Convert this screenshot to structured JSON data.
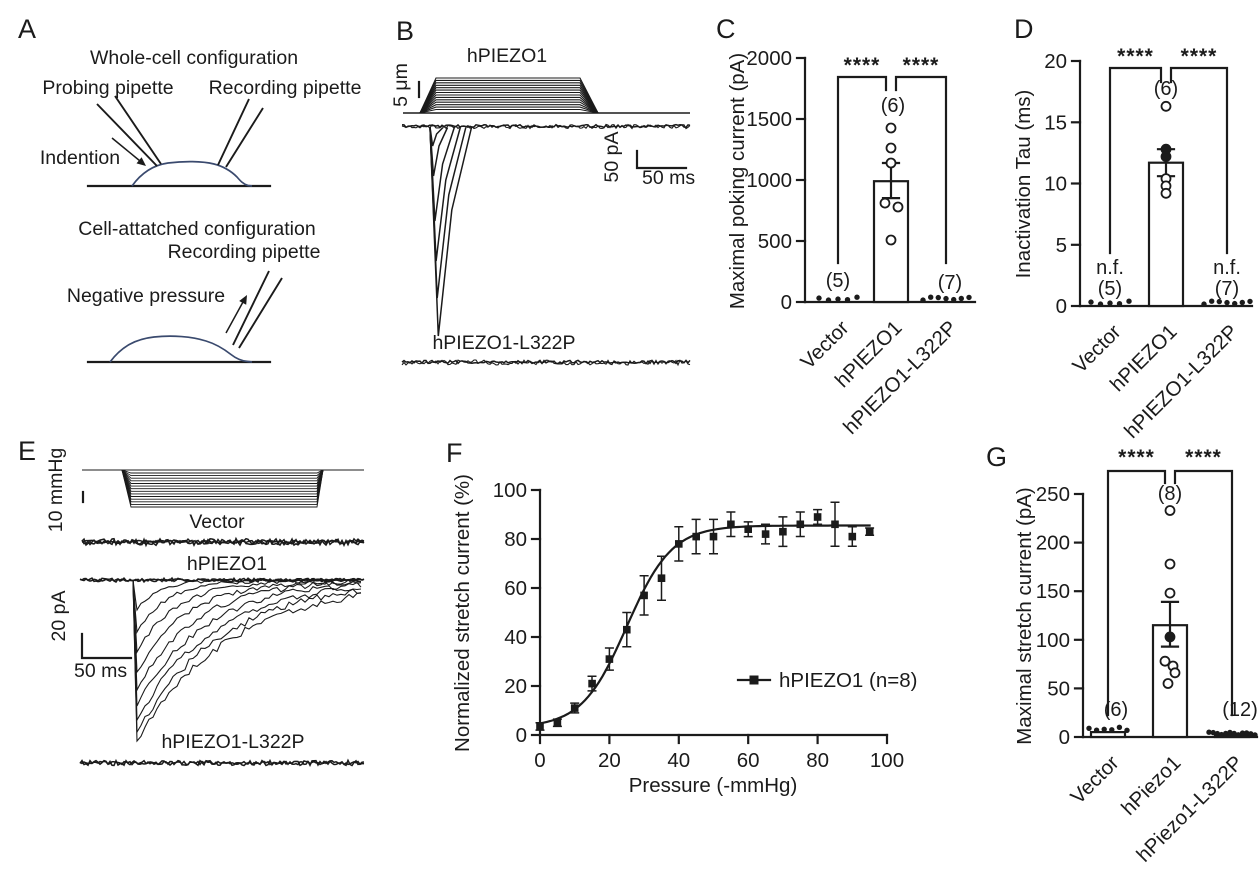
{
  "figure": {
    "background": "#ffffff",
    "ink": "#1b1b1b",
    "membrane_color": "#3a4a6e"
  },
  "panels": {
    "A": {
      "letter": "A",
      "whole_cell_title": "Whole-cell configuration",
      "probing_pipette": "Probing pipette",
      "recording_pipette": "Recording pipette",
      "indention": "Indention",
      "cell_attached_title": "Cell-attatched configuration",
      "recording_pipette2": "Recording pipette",
      "negative_pressure": "Negative pressure"
    },
    "B": {
      "letter": "B",
      "depth_scale": "5 μm",
      "trace1_label": "hPIEZO1",
      "current_scale": "50 pA",
      "time_scale": "50 ms",
      "trace2_label": "hPIEZO1-L322P"
    },
    "C": {
      "letter": "C"
    },
    "D": {
      "letter": "D"
    },
    "E": {
      "letter": "E",
      "pressure_scale": "10 mmHg",
      "trace1_label": "Vector",
      "trace2_label": "hPIEZO1",
      "current_scale": "20 pA",
      "time_scale": "50 ms",
      "trace3_label": "hPIEZO1-L322P"
    },
    "F": {
      "letter": "F"
    },
    "G": {
      "letter": "G"
    }
  },
  "chart_data": [
    {
      "id": "C",
      "type": "bar",
      "ylabel": "Maximal poking current (pA)",
      "ylim": [
        0,
        2000
      ],
      "yticks": [
        0,
        500,
        1000,
        1500,
        2000
      ],
      "categories": [
        "Vector",
        "hPIEZO1",
        "hPIEZO1-L322P"
      ],
      "values": [
        0,
        990,
        0
      ],
      "errors": [
        null,
        [
          852,
          1139
        ],
        null
      ],
      "n_labels": [
        "(5)",
        "(6)",
        "(7)"
      ],
      "nf_labels": [
        null,
        null,
        null
      ],
      "scatter": [
        {
          "category": 1,
          "points": [
            [
              0,
              1426
            ],
            [
              0,
              1262
            ],
            [
              0,
              1139
            ],
            [
              -6,
              811
            ],
            [
              7,
              779
            ],
            [
              0,
              508
            ]
          ],
          "filled": [
            false,
            false,
            false,
            false,
            false,
            false
          ]
        }
      ],
      "baseline_dots": [
        5,
        0,
        7
      ],
      "significance": [
        {
          "between": [
            0,
            1
          ],
          "label": "****"
        },
        {
          "between": [
            1,
            2
          ],
          "label": "****"
        }
      ]
    },
    {
      "id": "D",
      "type": "bar",
      "ylabel": "Inactivation Tau (ms)",
      "ylim": [
        0,
        20
      ],
      "yticks": [
        0,
        5,
        10,
        15,
        20
      ],
      "categories": [
        "Vector",
        "hPIEZO1",
        "hPIEZO1-L322P"
      ],
      "values": [
        0,
        11.7,
        0
      ],
      "errors": [
        null,
        [
          10.6,
          12.8
        ],
        null
      ],
      "n_labels": [
        "(5)",
        "(6)",
        "(7)"
      ],
      "nf_labels": [
        "n.f.",
        null,
        "n.f."
      ],
      "scatter": [
        {
          "category": 1,
          "points": [
            [
              0,
              16.3
            ],
            [
              0,
              12.8
            ],
            [
              0,
              12.2
            ],
            [
              0,
              10.4
            ],
            [
              0,
              9.8
            ],
            [
              0,
              9.2
            ]
          ],
          "filled": [
            false,
            true,
            true,
            false,
            false,
            false
          ]
        }
      ],
      "baseline_dots": [
        5,
        0,
        7
      ],
      "significance": [
        {
          "between": [
            0,
            1
          ],
          "label": "****"
        },
        {
          "between": [
            1,
            2
          ],
          "label": "****"
        }
      ]
    },
    {
      "id": "F",
      "type": "line",
      "xlabel": "Pressure (-mmHg)",
      "ylabel": "Normalized stretch current (%)",
      "xlim": [
        0,
        100
      ],
      "ylim": [
        0,
        100
      ],
      "xticks": [
        0,
        20,
        40,
        60,
        80,
        100
      ],
      "yticks": [
        0,
        20,
        40,
        60,
        80,
        100
      ],
      "legend": "hPIEZO1 (n=8)",
      "series": [
        {
          "name": "hPIEZO1 (n=8)",
          "marker": "square",
          "x": [
            0,
            5,
            10,
            15,
            20,
            25,
            30,
            35,
            40,
            45,
            50,
            55,
            60,
            65,
            70,
            75,
            80,
            85,
            90,
            95
          ],
          "y": [
            3.5,
            5,
            11,
            21,
            31,
            43,
            57,
            64,
            78,
            81,
            81,
            86,
            84,
            82,
            83,
            86,
            89,
            86,
            81,
            83
          ],
          "yerr": [
            1.5,
            1.5,
            2,
            3,
            4.5,
            7,
            8,
            9,
            7,
            7,
            7,
            5,
            3,
            4,
            6,
            5,
            3,
            9,
            4,
            1.5
          ]
        }
      ],
      "fit": {
        "type": "boltzmann",
        "base": 3,
        "span": 82.5,
        "x50": 25,
        "slope": 6.5
      }
    },
    {
      "id": "G",
      "type": "bar",
      "ylabel": "Maximal stretch current (pA)",
      "ylim": [
        0,
        250
      ],
      "yticks": [
        0,
        50,
        100,
        150,
        200,
        250
      ],
      "categories": [
        "Vector",
        "hPiezo1",
        "hPiezo1-L322P"
      ],
      "values": [
        5,
        115,
        2
      ],
      "errors": [
        null,
        [
          93,
          139
        ],
        null
      ],
      "n_labels": [
        "(6)",
        "(8)",
        "(12)"
      ],
      "nf_labels": [
        null,
        null,
        null
      ],
      "scatter": [
        {
          "category": 1,
          "points": [
            [
              0,
              233
            ],
            [
              0,
              178
            ],
            [
              0,
              148
            ],
            [
              0,
              103
            ],
            [
              -5,
              78
            ],
            [
              3,
              73
            ],
            [
              5,
              66
            ],
            [
              -2,
              55
            ]
          ],
          "filled": [
            false,
            false,
            false,
            true,
            false,
            false,
            false,
            false
          ]
        }
      ],
      "baseline_dots": [
        6,
        0,
        12
      ],
      "significance": [
        {
          "between": [
            0,
            1
          ],
          "label": "****"
        },
        {
          "between": [
            1,
            2
          ],
          "label": "****"
        }
      ]
    }
  ]
}
